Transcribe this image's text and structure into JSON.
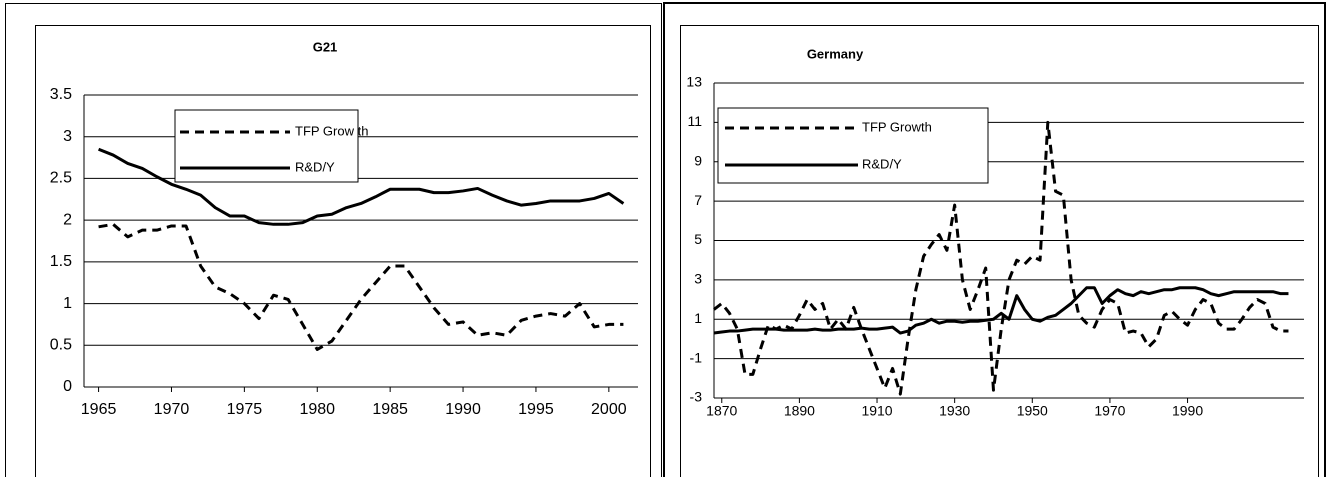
{
  "chart_data": [
    {
      "type": "line",
      "title": "G21",
      "x": [
        1965,
        1966,
        1967,
        1968,
        1969,
        1970,
        1971,
        1972,
        1973,
        1974,
        1975,
        1976,
        1977,
        1978,
        1979,
        1980,
        1981,
        1982,
        1983,
        1984,
        1985,
        1986,
        1987,
        1988,
        1989,
        1990,
        1991,
        1992,
        1993,
        1994,
        1995,
        1996,
        1997,
        1998,
        1999,
        2000,
        2001
      ],
      "series": [
        {
          "name": "TFP Grow th",
          "color": "#000000",
          "style": "dashed",
          "values": [
            1.92,
            1.95,
            1.8,
            1.88,
            1.88,
            1.93,
            1.93,
            1.45,
            1.2,
            1.12,
            1.0,
            0.82,
            1.1,
            1.05,
            0.75,
            0.45,
            0.55,
            0.8,
            1.05,
            1.25,
            1.45,
            1.45,
            1.2,
            0.95,
            0.75,
            0.78,
            0.62,
            0.65,
            0.62,
            0.8,
            0.85,
            0.88,
            0.85,
            1.0,
            0.72,
            0.75,
            0.75
          ]
        },
        {
          "name": "R&D/Y",
          "color": "#000000",
          "style": "solid",
          "values": [
            2.85,
            2.78,
            2.68,
            2.62,
            2.52,
            2.43,
            2.37,
            2.3,
            2.15,
            2.05,
            2.05,
            1.97,
            1.95,
            1.95,
            1.97,
            2.05,
            2.07,
            2.15,
            2.2,
            2.28,
            2.37,
            2.37,
            2.37,
            2.33,
            2.33,
            2.35,
            2.38,
            2.3,
            2.23,
            2.18,
            2.2,
            2.23,
            2.23,
            2.23,
            2.26,
            2.32,
            2.2
          ]
        }
      ],
      "xlim": [
        1964,
        2002
      ],
      "xticks": [
        1965,
        1970,
        1975,
        1980,
        1985,
        1990,
        1995,
        2000
      ],
      "ylim": [
        0,
        3.5
      ],
      "yticks": [
        0,
        0.5,
        1,
        1.5,
        2,
        2.5,
        3,
        3.5
      ],
      "grid": true
    },
    {
      "type": "line",
      "title": "Germany",
      "x": [
        1868,
        1870,
        1872,
        1874,
        1876,
        1878,
        1880,
        1882,
        1884,
        1886,
        1888,
        1890,
        1892,
        1894,
        1896,
        1898,
        1900,
        1902,
        1904,
        1906,
        1908,
        1910,
        1912,
        1914,
        1916,
        1918,
        1920,
        1922,
        1924,
        1926,
        1928,
        1930,
        1932,
        1934,
        1936,
        1938,
        1940,
        1942,
        1944,
        1946,
        1948,
        1950,
        1952,
        1954,
        1956,
        1958,
        1960,
        1962,
        1964,
        1966,
        1968,
        1970,
        1972,
        1974,
        1976,
        1978,
        1980,
        1982,
        1984,
        1986,
        1988,
        1990,
        1992,
        1994,
        1996,
        1998,
        2000,
        2002,
        2004,
        2006,
        2008,
        2010,
        2012,
        2014,
        2016
      ],
      "series": [
        {
          "name": "TFP Growth",
          "color": "#000000",
          "style": "dashed",
          "values": [
            1.5,
            1.8,
            1.3,
            0.5,
            -1.8,
            -1.8,
            -0.5,
            0.7,
            0.5,
            0.7,
            0.5,
            1.2,
            2.0,
            1.5,
            1.8,
            0.5,
            1.0,
            0.5,
            1.6,
            0.5,
            -0.5,
            -1.5,
            -2.5,
            -1.5,
            -2.8,
            0.0,
            2.5,
            4.2,
            4.8,
            5.3,
            4.5,
            6.8,
            3.0,
            1.5,
            2.5,
            3.6,
            -2.6,
            0.5,
            3.0,
            4.0,
            3.8,
            4.2,
            4.0,
            11.0,
            7.5,
            7.3,
            3.0,
            1.2,
            0.8,
            0.6,
            1.5,
            2.0,
            1.8,
            0.3,
            0.4,
            0.3,
            -0.4,
            0.0,
            1.2,
            1.4,
            1.0,
            0.7,
            1.5,
            2.0,
            1.8,
            0.8,
            0.5,
            0.5,
            1.0,
            1.6,
            2.0,
            1.8,
            0.6,
            0.4,
            0.4
          ]
        },
        {
          "name": "R&D/Y",
          "color": "#000000",
          "style": "solid",
          "values": [
            0.3,
            0.35,
            0.4,
            0.4,
            0.45,
            0.5,
            0.5,
            0.5,
            0.5,
            0.45,
            0.45,
            0.45,
            0.45,
            0.5,
            0.45,
            0.45,
            0.5,
            0.5,
            0.5,
            0.55,
            0.5,
            0.5,
            0.55,
            0.6,
            0.3,
            0.4,
            0.7,
            0.8,
            1.0,
            0.8,
            0.9,
            0.9,
            0.85,
            0.9,
            0.9,
            0.95,
            1.0,
            1.3,
            1.0,
            2.2,
            1.5,
            1.0,
            0.9,
            1.1,
            1.2,
            1.5,
            1.8,
            2.2,
            2.6,
            2.6,
            1.8,
            2.2,
            2.5,
            2.3,
            2.2,
            2.4,
            2.3,
            2.4,
            2.5,
            2.5,
            2.6,
            2.6,
            2.6,
            2.5,
            2.3,
            2.2,
            2.3,
            2.4,
            2.4,
            2.4,
            2.4,
            2.4,
            2.4,
            2.3,
            2.3
          ]
        }
      ],
      "xlim": [
        1868,
        2020
      ],
      "xticks": [
        1870,
        1890,
        1910,
        1930,
        1950,
        1970,
        1990
      ],
      "ylim": [
        -3,
        13
      ],
      "yticks": [
        -3,
        -1,
        1,
        3,
        5,
        7,
        9,
        11,
        13
      ],
      "grid": true
    }
  ]
}
